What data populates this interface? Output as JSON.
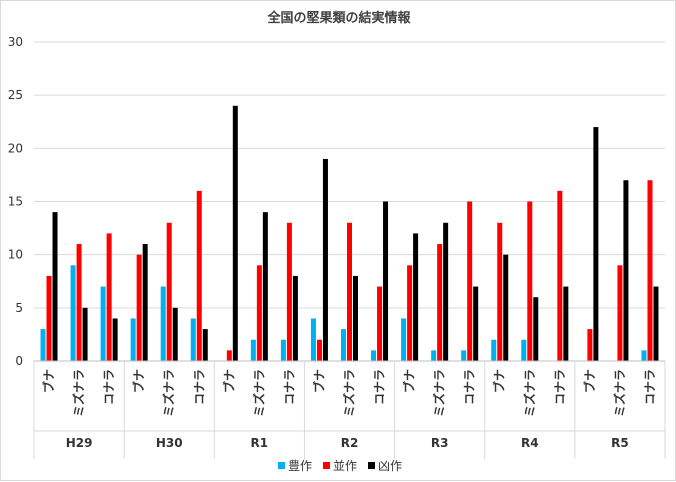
{
  "chart_data": {
    "type": "bar",
    "title": "全国の堅果類の結実情報",
    "ylim": [
      0,
      30
    ],
    "yticks": [
      0,
      5,
      10,
      15,
      20,
      25,
      30
    ],
    "grid": true,
    "legend_position": "bottom",
    "groups": [
      "H29",
      "H30",
      "R1",
      "R2",
      "R3",
      "R4",
      "R5"
    ],
    "subcategories": [
      "ブナ",
      "ミズナラ",
      "コナラ"
    ],
    "series": [
      {
        "name": "豊作",
        "color": "#00b0f0",
        "values": [
          3,
          9,
          7,
          4,
          7,
          4,
          0,
          2,
          2,
          4,
          3,
          1,
          4,
          1,
          1,
          2,
          2,
          0,
          0,
          0,
          1
        ]
      },
      {
        "name": "並作",
        "color": "#ff0000",
        "values": [
          8,
          11,
          12,
          10,
          13,
          16,
          1,
          9,
          13,
          2,
          13,
          7,
          9,
          11,
          15,
          13,
          15,
          16,
          3,
          9,
          17
        ]
      },
      {
        "name": "凶作",
        "color": "#000000",
        "values": [
          14,
          5,
          4,
          11,
          5,
          3,
          24,
          14,
          8,
          19,
          8,
          15,
          12,
          13,
          7,
          10,
          6,
          7,
          22,
          17,
          7
        ]
      }
    ]
  }
}
